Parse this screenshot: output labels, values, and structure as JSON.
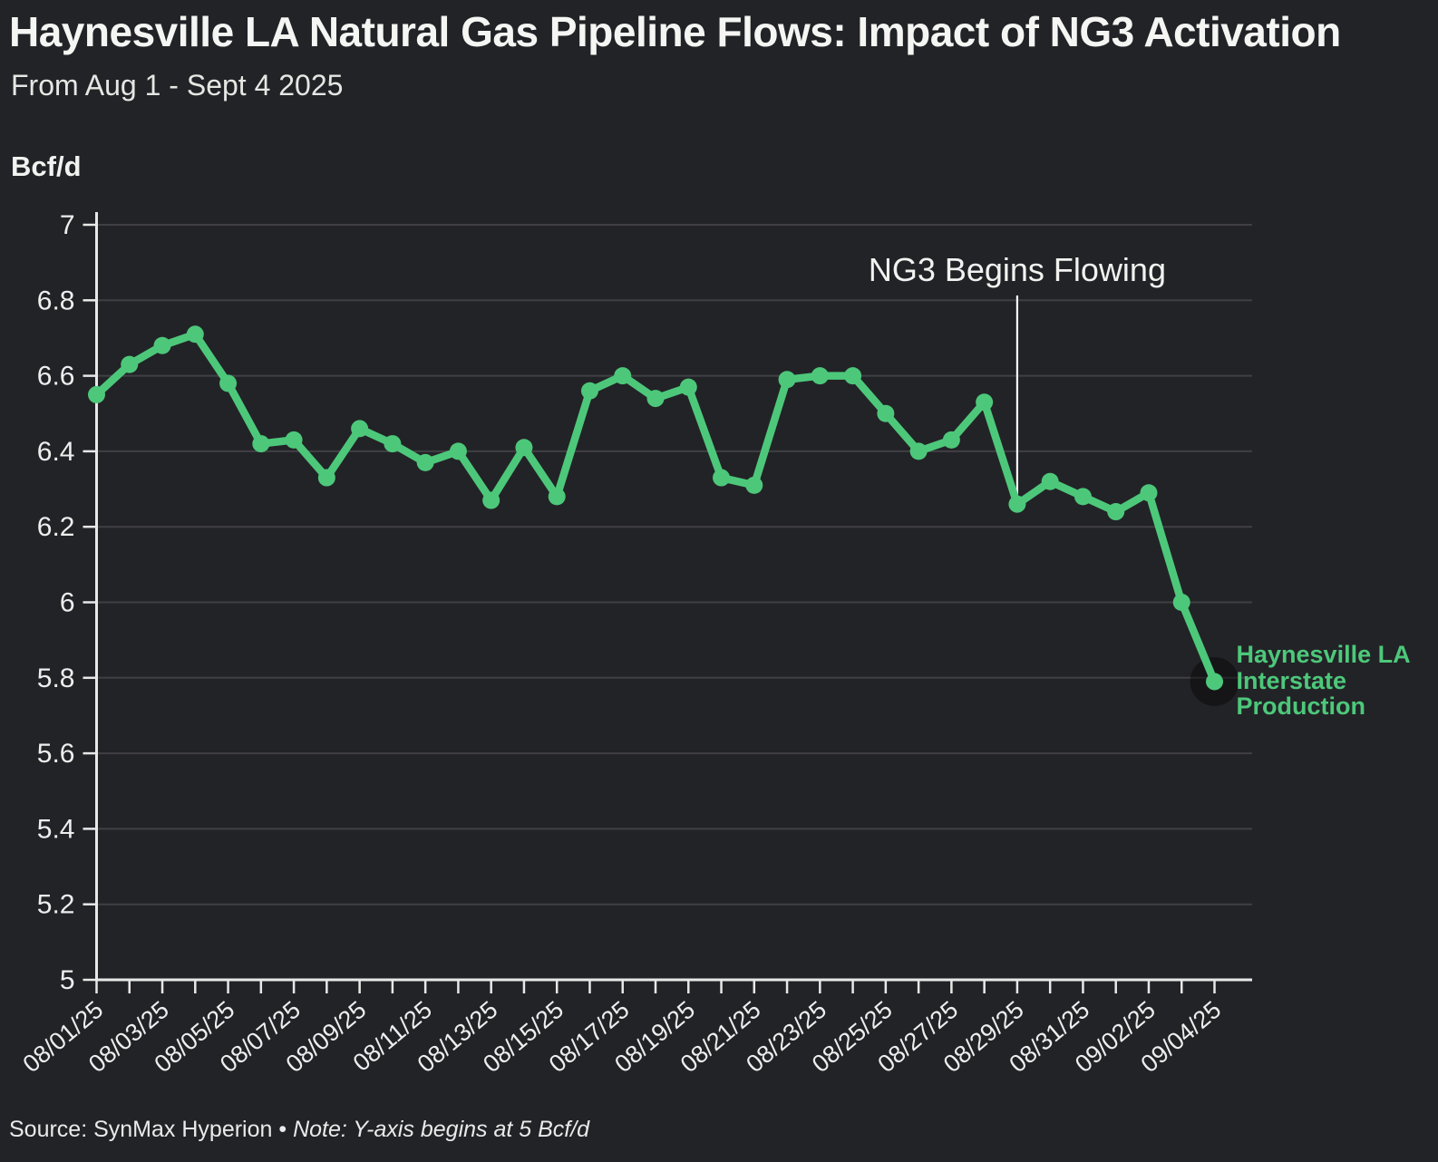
{
  "header": {
    "title": "Haynesville LA Natural Gas Pipeline Flows: Impact of NG3 Activation",
    "subtitle": "From Aug 1 - Sept 4 2025"
  },
  "footer": {
    "source": "Source: SynMax Hyperion • ",
    "note": "Note: Y-axis begins at 5 Bcf/d"
  },
  "chart_data": {
    "type": "line",
    "title": "Haynesville LA Natural Gas Pipeline Flows: Impact of NG3 Activation",
    "subtitle": "From Aug 1 - Sept 4 2025",
    "ylabel": "Bcf/d",
    "xlabel": "",
    "ylim": [
      5,
      7
    ],
    "grid": true,
    "x_label_every": 2,
    "y_ticks": [
      "5",
      "5.2",
      "5.4",
      "5.6",
      "5.8",
      "6",
      "6.2",
      "6.4",
      "6.6",
      "6.8",
      "7"
    ],
    "x": [
      "08/01/25",
      "08/02/25",
      "08/03/25",
      "08/04/25",
      "08/05/25",
      "08/06/25",
      "08/07/25",
      "08/08/25",
      "08/09/25",
      "08/10/25",
      "08/11/25",
      "08/12/25",
      "08/13/25",
      "08/14/25",
      "08/15/25",
      "08/16/25",
      "08/17/25",
      "08/18/25",
      "08/19/25",
      "08/20/25",
      "08/21/25",
      "08/22/25",
      "08/23/25",
      "08/24/25",
      "08/25/25",
      "08/26/25",
      "08/27/25",
      "08/28/25",
      "08/29/25",
      "08/30/25",
      "08/31/25",
      "09/01/25",
      "09/02/25",
      "09/03/25",
      "09/04/25"
    ],
    "series": [
      {
        "name": "Haynesville LA Interstate Production",
        "label_lines": [
          "Haynesville LA",
          "Interstate",
          "Production"
        ],
        "color": "#4dc87a",
        "values": [
          6.55,
          6.63,
          6.68,
          6.71,
          6.58,
          6.42,
          6.43,
          6.33,
          6.46,
          6.42,
          6.37,
          6.4,
          6.27,
          6.41,
          6.28,
          6.56,
          6.6,
          6.54,
          6.57,
          6.33,
          6.31,
          6.59,
          6.6,
          6.6,
          6.5,
          6.4,
          6.43,
          6.53,
          6.26,
          6.32,
          6.28,
          6.24,
          6.29,
          6.0,
          5.79
        ]
      }
    ],
    "annotation": {
      "label": "NG3 Begins Flowing",
      "date": "08/29/25"
    },
    "colors": {
      "background": "#222327",
      "line": "#4dc87a",
      "grid": "#404044",
      "axis": "#e8e8e8",
      "tick_text": "#eeeeee",
      "annotation_line": "#ffffff",
      "end_halo": "rgba(0,0,0,0.38)"
    }
  }
}
